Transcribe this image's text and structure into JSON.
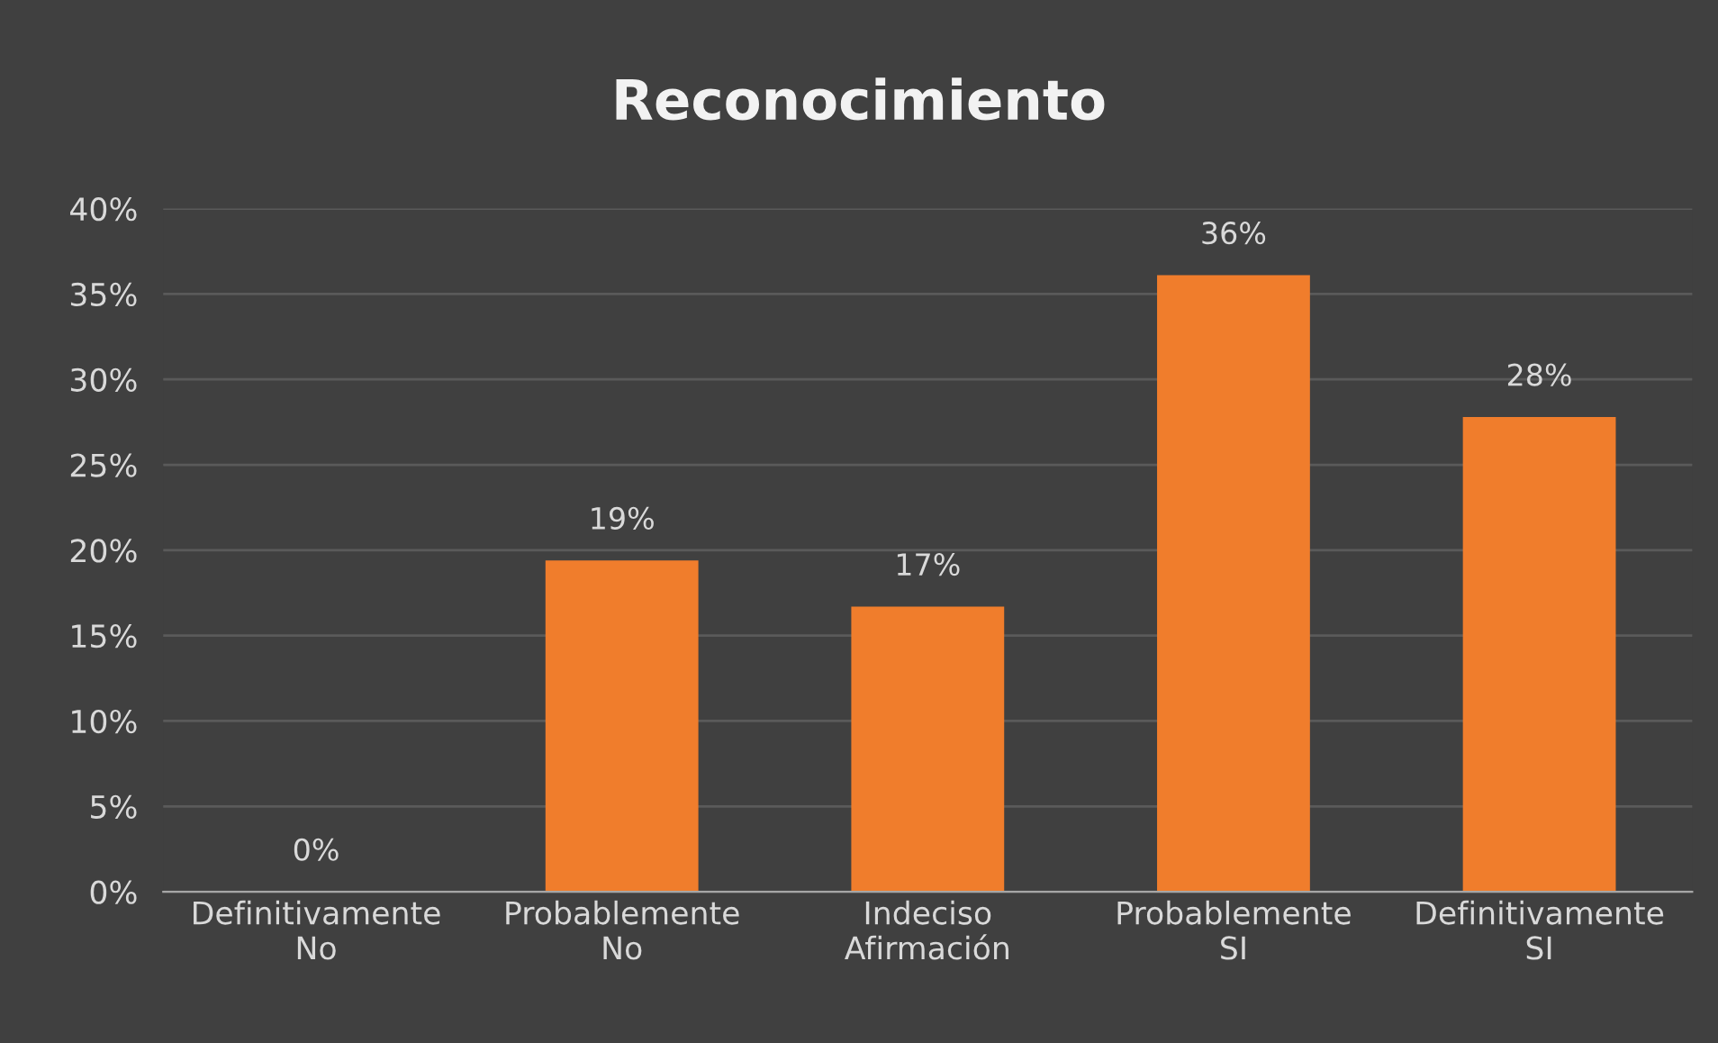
{
  "chart_data": {
    "type": "bar",
    "title": "Reconocimiento",
    "categories": [
      "Definitivamente\nNo",
      "Probablemente\nNo",
      "Indeciso\nAfirmación",
      "Probablemente\nSI",
      "Definitivamente\nSI"
    ],
    "values": [
      0,
      19.4,
      16.7,
      36.1,
      27.8
    ],
    "value_labels": [
      "0%",
      "19%",
      "17%",
      "36%",
      "28%"
    ],
    "color": "#f07d2c",
    "ylim": [
      0,
      40
    ],
    "yticks": [
      {
        "value": 0,
        "label": "0%"
      },
      {
        "value": 5,
        "label": "5%"
      },
      {
        "value": 10,
        "label": "10%"
      },
      {
        "value": 15,
        "label": "15%"
      },
      {
        "value": 20,
        "label": "20%"
      },
      {
        "value": 25,
        "label": "25%"
      },
      {
        "value": 30,
        "label": "30%"
      },
      {
        "value": 35,
        "label": "35%"
      },
      {
        "value": 40,
        "label": "40%"
      }
    ],
    "grid": "y",
    "legend": false
  }
}
